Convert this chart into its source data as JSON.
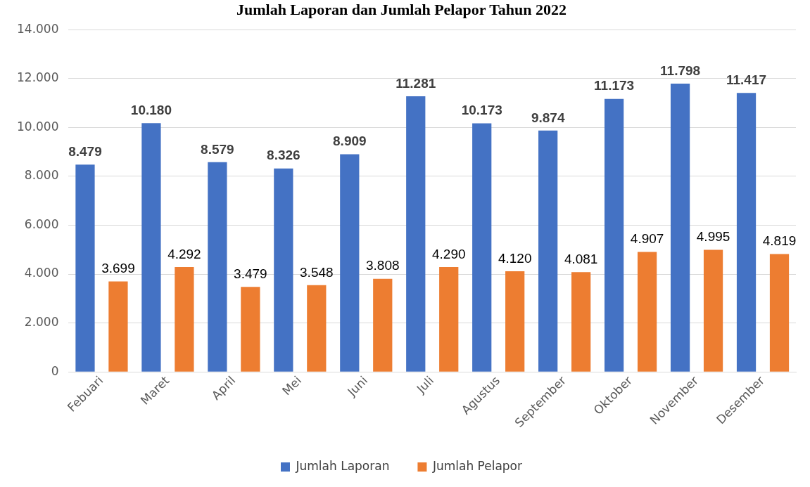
{
  "chart_data": {
    "type": "bar",
    "title": "Jumlah Laporan dan Jumlah Pelapor Tahun 2022",
    "categories": [
      "Febuari",
      "Maret",
      "April",
      "Mei",
      "Juni",
      "Juli",
      "Agustus",
      "September",
      "Oktober",
      "November",
      "Desember"
    ],
    "series": [
      {
        "name": "Jumlah Laporan",
        "color": "#4472c4",
        "values": [
          8479,
          10180,
          8579,
          8326,
          8909,
          11281,
          10173,
          9874,
          11173,
          11798,
          11417
        ],
        "value_labels": [
          "8.479",
          "10.180",
          "8.579",
          "8.326",
          "8.909",
          "11.281",
          "10.173",
          "9.874",
          "11.173",
          "11.798",
          "11.417"
        ]
      },
      {
        "name": "Jumlah Pelapor",
        "color": "#ed7d31",
        "values": [
          3699,
          4292,
          3479,
          3548,
          3808,
          4290,
          4120,
          4081,
          4907,
          4995,
          4819
        ],
        "value_labels": [
          "3.699",
          "4.292",
          "3.479",
          "3.548",
          "3.808",
          "4.290",
          "4.120",
          "4.081",
          "4.907",
          "4.995",
          "4.819"
        ]
      }
    ],
    "ylim": [
      0,
      14000
    ],
    "yticks": [
      {
        "value": 0,
        "label": "0"
      },
      {
        "value": 2000,
        "label": "2.000"
      },
      {
        "value": 4000,
        "label": "4.000"
      },
      {
        "value": 6000,
        "label": "6.000"
      },
      {
        "value": 8000,
        "label": "8.000"
      },
      {
        "value": 10000,
        "label": "10.000"
      },
      {
        "value": 12000,
        "label": "12.000"
      },
      {
        "value": 14000,
        "label": "14.000"
      }
    ],
    "grid": "y",
    "legend": "bottom"
  }
}
